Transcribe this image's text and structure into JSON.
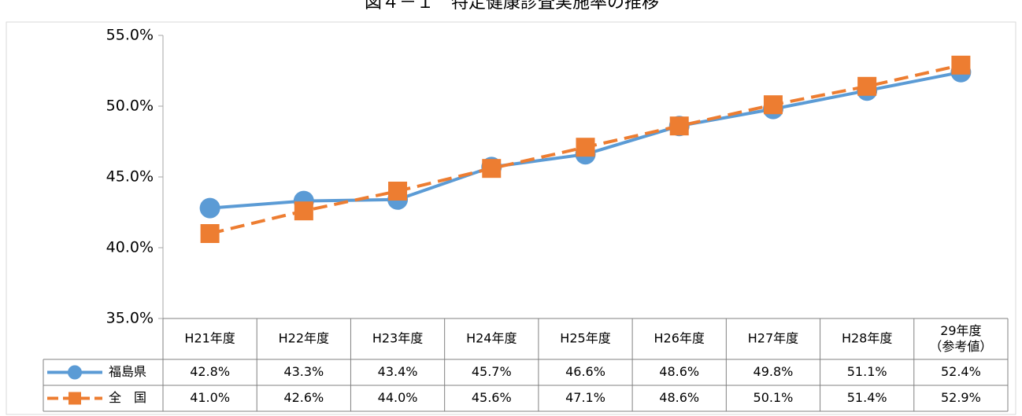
{
  "chart_data": {
    "type": "line",
    "title": "図４－１　特定健康診査実施率の推移",
    "categories": [
      "H21年度",
      "H22年度",
      "H23年度",
      "H24年度",
      "H25年度",
      "H26年度",
      "H27年度",
      "H28年度",
      "29年度\n（参考値）"
    ],
    "series": [
      {
        "name": "福島県",
        "color": "#5b9bd5",
        "dash": false,
        "marker": "circle",
        "values": [
          42.8,
          43.3,
          43.4,
          45.7,
          46.6,
          48.6,
          49.8,
          51.1,
          52.4
        ],
        "value_labels": [
          "42.8%",
          "43.3%",
          "43.4%",
          "45.7%",
          "46.6%",
          "48.6%",
          "49.8%",
          "51.1%",
          "52.4%"
        ]
      },
      {
        "name": "全　国",
        "color": "#ed7d31",
        "dash": true,
        "marker": "square",
        "values": [
          41.0,
          42.6,
          44.0,
          45.6,
          47.1,
          48.6,
          50.1,
          51.4,
          52.9
        ],
        "value_labels": [
          "41.0%",
          "42.6%",
          "44.0%",
          "45.6%",
          "47.1%",
          "48.6%",
          "50.1%",
          "51.4%",
          "52.9%"
        ]
      }
    ],
    "ylim": [
      35,
      55
    ],
    "yticks": [
      {
        "value": 35,
        "label": "35.0%"
      },
      {
        "value": 40,
        "label": "40.0%"
      },
      {
        "value": 45,
        "label": "45.0%"
      },
      {
        "value": 50,
        "label": "50.0%"
      },
      {
        "value": 55,
        "label": "55.0%"
      }
    ]
  }
}
